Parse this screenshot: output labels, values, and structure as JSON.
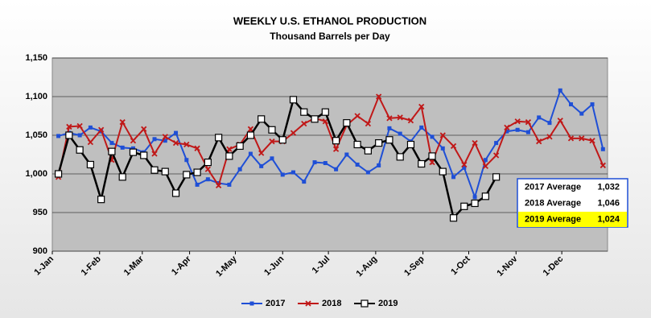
{
  "chart_data": {
    "type": "line",
    "title": "WEEKLY U.S. ETHANOL PRODUCTION",
    "subtitle": "Thousand Barrels per Day",
    "x": [
      5,
      12,
      19,
      26,
      33,
      40,
      47,
      54,
      61,
      68,
      75,
      82,
      89,
      96,
      103,
      110,
      117,
      124,
      131,
      138,
      145,
      152,
      159,
      166,
      173,
      180,
      187,
      194,
      201,
      208,
      215,
      222,
      229,
      236,
      243,
      250,
      257,
      264,
      271,
      278,
      285,
      292,
      299,
      306,
      313,
      320,
      327,
      334,
      341,
      348,
      355,
      362
    ],
    "xlim": [
      1,
      365
    ],
    "xticks": [
      {
        "value": 1,
        "label": "1-Jan"
      },
      {
        "value": 32,
        "label": "1-Feb"
      },
      {
        "value": 60,
        "label": "1-Mar"
      },
      {
        "value": 91,
        "label": "1-Apr"
      },
      {
        "value": 121,
        "label": "1-May"
      },
      {
        "value": 152,
        "label": "1-Jun"
      },
      {
        "value": 182,
        "label": "1-Jul"
      },
      {
        "value": 213,
        "label": "1-Aug"
      },
      {
        "value": 244,
        "label": "1-Sep"
      },
      {
        "value": 274,
        "label": "1-Oct"
      },
      {
        "value": 305,
        "label": "1-Nov"
      },
      {
        "value": 335,
        "label": "1-Dec"
      }
    ],
    "ylim": [
      900,
      1150
    ],
    "yticks": [
      900,
      950,
      {
        "value": 1000,
        "label": "1,000"
      },
      {
        "value": 1050,
        "label": "1,050"
      },
      {
        "value": 1100,
        "label": "1,100"
      },
      {
        "value": 1150,
        "label": "1,150"
      }
    ],
    "grid": true,
    "series": [
      {
        "name": "2017",
        "color": "#1f4fd6",
        "marker": "square",
        "values": [
          1049,
          1053,
          1050,
          1060,
          1055,
          1040,
          1034,
          1033,
          1028,
          1045,
          1043,
          1053,
          1018,
          986,
          993,
          988,
          986,
          1006,
          1026,
          1010,
          1020,
          999,
          1002,
          990,
          1015,
          1014,
          1006,
          1025,
          1012,
          1002,
          1011,
          1059,
          1052,
          1042,
          1060,
          1048,
          1033,
          996,
          1008,
          970,
          1018,
          1040,
          1055,
          1057,
          1054,
          1073,
          1066,
          1108,
          1090,
          1078,
          1090,
          1032
        ]
      },
      {
        "name": "2018",
        "color": "#c01818",
        "marker": "cross",
        "values": [
          996,
          1061,
          1062,
          1041,
          1057,
          1018,
          1067,
          1043,
          1058,
          1026,
          1048,
          1040,
          1038,
          1033,
          1006,
          985,
          1032,
          1038,
          1058,
          1027,
          1042,
          1042,
          1053,
          1065,
          1072,
          1068,
          1032,
          1063,
          1075,
          1065,
          1100,
          1072,
          1073,
          1069,
          1087,
          1015,
          1050,
          1036,
          1012,
          1040,
          1010,
          1024,
          1060,
          1068,
          1067,
          1042,
          1048,
          1069,
          1046,
          1046,
          1043,
          1011
        ]
      },
      {
        "name": "2019",
        "color": "#000000",
        "marker": "open-square",
        "values": [
          1000,
          1050,
          1031,
          1012,
          967,
          1029,
          996,
          1028,
          1024,
          1005,
          1003,
          975,
          999,
          1002,
          1015,
          1047,
          1023,
          1036,
          1050,
          1071,
          1057,
          1044,
          1096,
          1080,
          1071,
          1080,
          1043,
          1066,
          1038,
          1030,
          1040,
          1044,
          1022,
          1038,
          1013,
          1023,
          1003,
          943,
          958,
          962,
          971,
          996,
          null,
          null,
          null,
          null,
          null,
          null,
          null,
          null,
          null,
          null
        ]
      }
    ],
    "averages": [
      {
        "name": "2017 Average",
        "text": "1,032",
        "color": "#1f4fd6",
        "background": "#ffffff"
      },
      {
        "name": "2018 Average",
        "text": "1,046",
        "color": "#c01818",
        "background": "#ffffff"
      },
      {
        "name": "2019 Average",
        "text": "1,024",
        "color": "#000000",
        "background": "#ffff00"
      }
    ]
  }
}
